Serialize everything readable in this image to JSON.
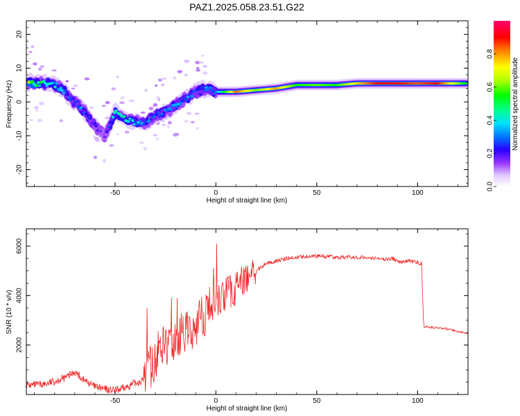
{
  "title": "PAZ1.2025.058.23.51.G22",
  "chart_data": [
    {
      "type": "heatmap",
      "xlabel": "Height of straight line (km)",
      "ylabel": "Frequency (Hz)",
      "xlim": [
        -94,
        125
      ],
      "ylim": [
        -25,
        24
      ],
      "xticks": [
        -50,
        0,
        50,
        100
      ],
      "yticks": [
        -20,
        -10,
        0,
        10,
        20
      ],
      "grid": false,
      "ridge": {
        "x": [
          -90,
          -85,
          -80,
          -75,
          -70,
          -65,
          -60,
          -55,
          -50,
          -45,
          -40,
          -35,
          -30,
          -25,
          -20,
          -15,
          -10,
          -5,
          0,
          10,
          20,
          30,
          40,
          50,
          60,
          70,
          80,
          90,
          100,
          110,
          125
        ],
        "freq": [
          5.5,
          5.5,
          5.2,
          3,
          0,
          -3,
          -7,
          -10,
          -3,
          -5,
          -6,
          -6,
          -4,
          -3,
          -1,
          1,
          3,
          4,
          3,
          3,
          3.5,
          4,
          5,
          5,
          5,
          5.5,
          5.5,
          5.5,
          5.5,
          5.5,
          5.5
        ],
        "amplitude": [
          0.6,
          0.4,
          0.45,
          0.3,
          0.25,
          0.3,
          0.2,
          0.15,
          0.4,
          0.45,
          0.35,
          0.3,
          0.25,
          0.3,
          0.3,
          0.35,
          0.25,
          0.3,
          0.3,
          0.85,
          0.6,
          0.8,
          0.55,
          0.6,
          0.55,
          0.75,
          0.9,
          0.9,
          0.85,
          0.9,
          0.5
        ]
      },
      "colorbar": {
        "label": "Normalized spectral amplitude",
        "ticks": [
          "0.0",
          "0.2",
          "0.4",
          "0.6",
          "0.8"
        ],
        "range": [
          0,
          1
        ]
      }
    },
    {
      "type": "line",
      "xlabel": "Height of straight line (km)",
      "ylabel": "SNR (10 * v/v)",
      "xlim": [
        -94,
        125
      ],
      "ylim": [
        0,
        6700
      ],
      "xticks": [
        -50,
        0,
        50,
        100
      ],
      "yticks": [
        2000,
        4000,
        6000
      ],
      "color": "#ee2222",
      "series": [
        {
          "x": [
            -94,
            -85,
            -75,
            -70,
            -65,
            -60,
            -55,
            -50,
            -45,
            -40,
            -36,
            -33,
            -30,
            -27,
            -24,
            -21,
            -18,
            -15,
            -12,
            -9,
            -6,
            -3,
            0,
            3,
            6,
            9,
            12,
            15,
            20,
            25,
            30,
            35,
            40,
            45,
            50,
            55,
            60,
            65,
            70,
            75,
            80,
            85,
            88,
            90,
            92,
            95,
            100,
            102,
            103,
            105,
            110,
            115,
            120,
            125
          ],
          "y": [
            300,
            350,
            600,
            850,
            500,
            250,
            150,
            100,
            200,
            400,
            500,
            1000,
            1500,
            2000,
            1800,
            2000,
            2400,
            2500,
            2600,
            2900,
            3200,
            3600,
            3800,
            3900,
            4100,
            4200,
            4500,
            4700,
            5000,
            5300,
            5400,
            5500,
            5550,
            5600,
            5600,
            5580,
            5550,
            5550,
            5550,
            5550,
            5500,
            5450,
            5500,
            5400,
            5350,
            5400,
            5350,
            5300,
            2750,
            2720,
            2700,
            2650,
            2550,
            2450
          ]
        }
      ]
    }
  ]
}
